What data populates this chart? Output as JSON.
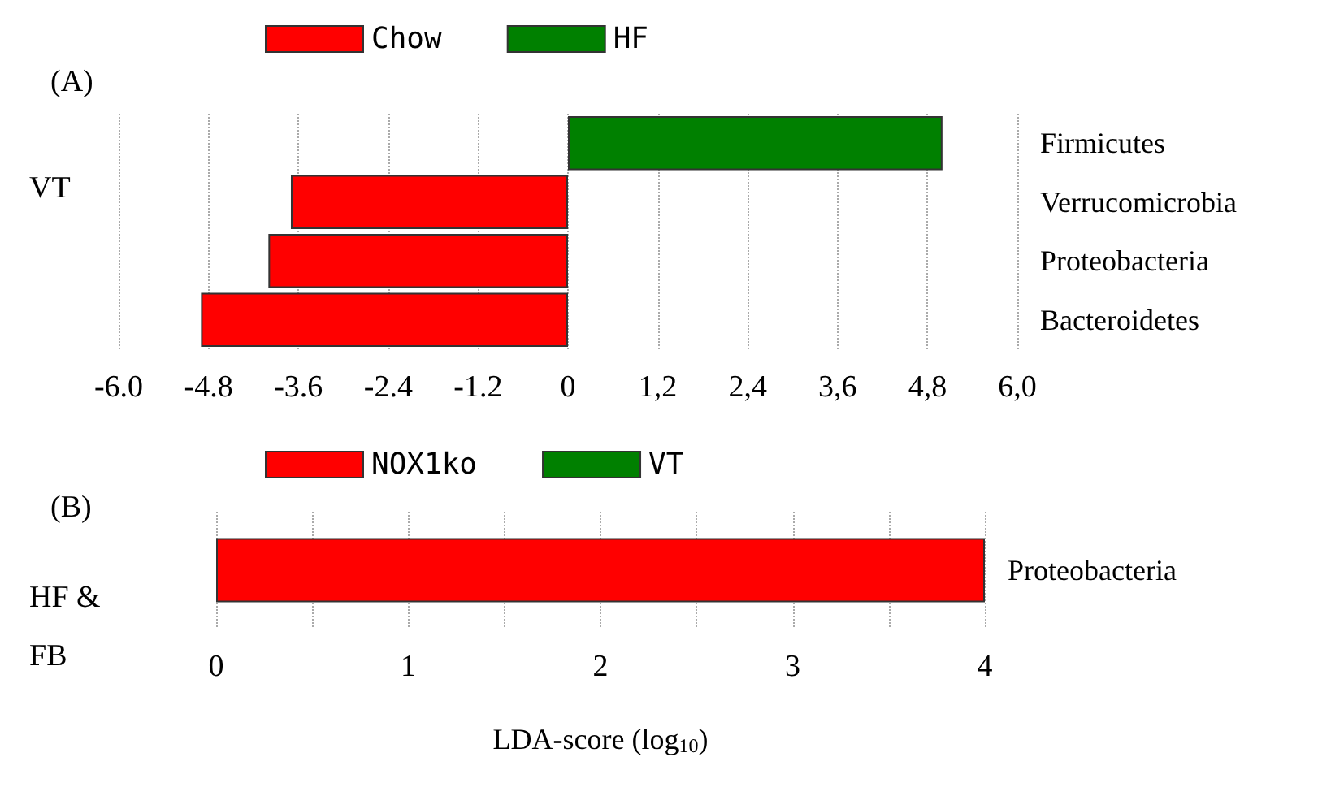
{
  "chart_data": [
    {
      "type": "bar",
      "orientation": "horizontal",
      "title": "(A)",
      "ylabel": "VT",
      "categories": [
        "Firmicutes",
        "Verrucomicrobia",
        "Proteobacteria",
        "Bacteroidetes"
      ],
      "series": [
        {
          "name": "Chow",
          "color": "#ff0000",
          "values": [
            null,
            -3.7,
            -4.0,
            -4.9
          ]
        },
        {
          "name": "HF",
          "color": "#008000",
          "values": [
            5.0,
            null,
            null,
            null
          ]
        }
      ],
      "xlim": [
        -6,
        6
      ],
      "xticks": [
        {
          "value": -6,
          "label": "-6.0"
        },
        {
          "value": -4.8,
          "label": "-4.8"
        },
        {
          "value": -3.6,
          "label": "-3.6"
        },
        {
          "value": -2.4,
          "label": "-2.4"
        },
        {
          "value": -1.2,
          "label": "-1.2"
        },
        0,
        {
          "value": 1.2,
          "label": "1,2"
        },
        {
          "value": 2.4,
          "label": "2,4"
        },
        {
          "value": 3.6,
          "label": "3,6"
        },
        {
          "value": 4.8,
          "label": "4,8"
        },
        {
          "value": 6,
          "label": "6,0"
        }
      ],
      "grid": "x",
      "legend": "top left"
    },
    {
      "type": "bar",
      "orientation": "horizontal",
      "title": "(B)",
      "ylabel": "HF & FB",
      "xlabel": "LDA-score (log$_{10}$)",
      "categories": [
        "Proteobacteria"
      ],
      "series": [
        {
          "name": "NOX1ko",
          "color": "#ff0000",
          "values": [
            4.0
          ]
        },
        {
          "name": "VT",
          "color": "#008000",
          "values": [
            null
          ]
        }
      ],
      "xlim": [
        0,
        4
      ],
      "xticks": [
        0,
        {
          "value": 0.5,
          "label": null
        },
        1,
        {
          "value": 1.5,
          "label": null
        },
        2,
        {
          "value": 2.5,
          "label": null
        },
        3,
        {
          "value": 3.5,
          "label": null
        },
        4
      ],
      "grid": "x",
      "legend": "top left"
    }
  ]
}
